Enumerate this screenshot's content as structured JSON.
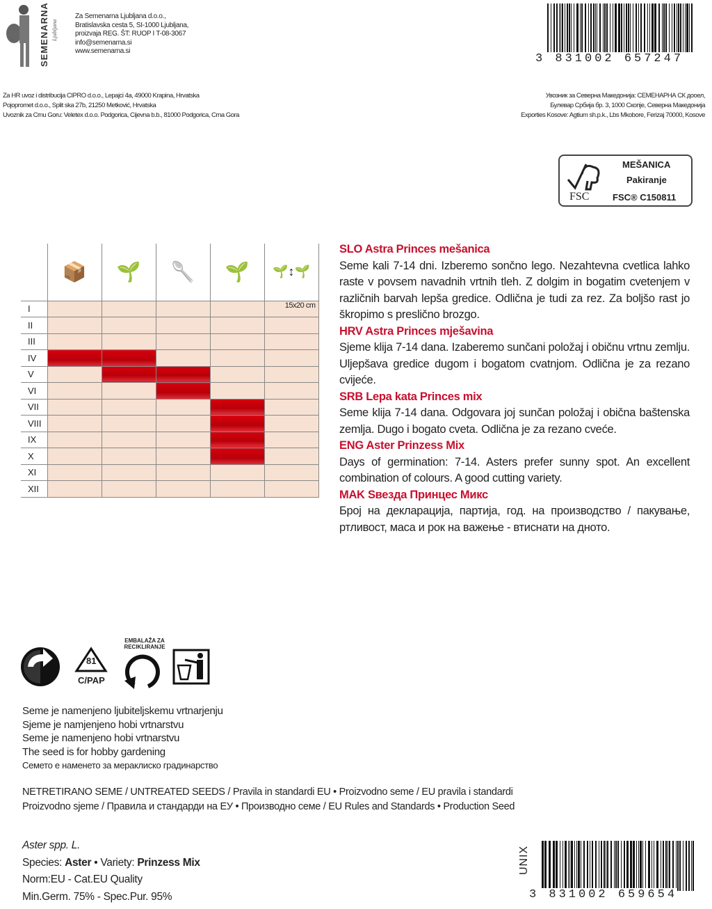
{
  "company": {
    "logo_text": "SEMENARNA",
    "logo_sub": "Ljubljana",
    "lines": [
      "Za Semenarna Ljubljana d.o.o.,",
      "Bratislavska cesta 5, SI-1000 Ljubljana,",
      "proizvaja REG. ŠT: RUOP I T-08-3067",
      "info@semenarna.si",
      "www.semenarna.si"
    ]
  },
  "distributors_left": [
    "Za HR uvoz i distribucija CIPRO d.o.o., Lepajci 4a, 49000 Krapina, Hrvatska",
    "Pojopromet d.o.o., Split ska 27b, 21250 Metković, Hrvatska",
    "Uvoznik za Crnu Goru: Veletex d.o.o. Podgorica, Cijevna b.b., 81000 Podgorica, Crna Gora"
  ],
  "distributors_right": [
    "Увозник за Северна Македонија: СЕМЕНАРНА СК дооел,",
    "Булевар Србија бр. 3, 1000 Скопје, Северна Македонија",
    "Exporties Kosove: Agtium sh.p.k., Lbs Mkobore, Ferizaj 70000, Kosove"
  ],
  "barcode_top": "3 831002 657247",
  "barcode_bottom": "3 831002 659654",
  "barcode_bottom_label": "UNIX",
  "fsc": {
    "logo": "FSC",
    "line1": "MEŠANICA",
    "line2": "Pakiranje",
    "line3": "FSC® C150811"
  },
  "calendar": {
    "header_icons": [
      "sowing-in-tray-icon",
      "transplant-seedling-icon",
      "trowel-icon",
      "planting-seedling-icon",
      "spacing-icon"
    ],
    "spacing": "15x20 cm",
    "months": [
      "I",
      "II",
      "III",
      "IV",
      "V",
      "VI",
      "VII",
      "VIII",
      "IX",
      "X",
      "XI",
      "XII"
    ],
    "active": [
      [],
      [],
      [],
      [
        0,
        1
      ],
      [
        1,
        2
      ],
      [
        2
      ],
      [
        3
      ],
      [
        3
      ],
      [
        3
      ],
      [
        3
      ],
      [],
      []
    ],
    "active_color": "#d0000b"
  },
  "descriptions": [
    {
      "title": "SLO Astra Princes mešanica",
      "text": "Seme kali 7-14 dni. Izberemo sončno lego. Nezahtevna cvetlica lahko raste v povsem navadnih vrtnih tleh. Z dolgim in bogatim cvetenjem v različnih barvah lepša gredice. Odlična je tudi za rez. Za boljšo rast jo škropimo s preslično brozgo."
    },
    {
      "title": "HRV Astra Princes mješavina",
      "text": "Sjeme klija 7-14 dana. Izaberemo sunčani položaj i običnu vrtnu zemlju. Uljepšava gredice dugom i bogatom cvatnjom. Odlična je za rezano cvijeće."
    },
    {
      "title": "SRB Lepa kata Princes mix",
      "text": "Seme klija 7-14 dana. Odgovara joj sunčan položaj i obična baštenska zemlja. Dugo i bogato cveta. Odlična je za rezano cveće."
    },
    {
      "title": "ENG Aster Prinzess Mix",
      "text": "Days of germination: 7-14. Asters prefer sunny spot. An excellent combination of colours. A good cutting variety."
    },
    {
      "title": "MAK Ѕвезда Принцес Микс",
      "text": "Број на декларација, партија, год. на производство / пакување, ртливост, маса и рок на важење - втиснати на дното."
    }
  ],
  "recycling": {
    "icons": [
      "green-dot-icon",
      "recycle-81-icon",
      "recycle-arrow-icon",
      "tidyman-bin-icon"
    ],
    "code": "81",
    "material": "C/PAP",
    "label": "EMBALAŽA ZA RECIKLIRANJE"
  },
  "hobby_lines": [
    "Seme je namenjeno ljubiteljskemu vrtnarjenju",
    "Sjeme je namjenjeno hobi vrtnarstvu",
    "Seme je namenjeno hobi vrtnarstvu",
    "The seed is for hobby gardening",
    "Семето е наменето за мераклиско градинарство"
  ],
  "standards_lines": [
    "NETRETIRANO SEME / UNTREATED SEEDS / Pravila in standardi EU • Proizvodno seme / EU pravila i standardi",
    "Proizvodno sjeme / Правила и стандарди на ЕУ • Производно семе / EU Rules and Standards • Production Seed"
  ],
  "species": {
    "latin": "Aster spp. L.",
    "species_label": "Species:",
    "species": "Aster",
    "variety_label": "• Variety:",
    "variety": "Prinzess Mix",
    "norm": "Norm:EU - Cat.EU Quality",
    "germ": "Min.Germ. 75% - Spec.Pur. 95%"
  }
}
